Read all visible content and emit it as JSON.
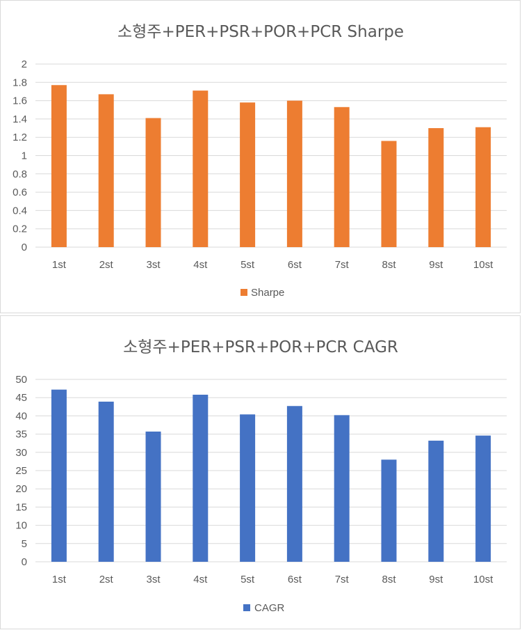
{
  "chart_data": [
    {
      "type": "bar",
      "title": "소형주+PER+PSR+POR+PCR Sharpe",
      "categories": [
        "1st",
        "2st",
        "3st",
        "4st",
        "5st",
        "6st",
        "7st",
        "8st",
        "9st",
        "10st"
      ],
      "series": [
        {
          "name": "Sharpe",
          "values": [
            1.77,
            1.67,
            1.41,
            1.71,
            1.58,
            1.6,
            1.53,
            1.16,
            1.3,
            1.31
          ]
        }
      ],
      "ylim": [
        0,
        2
      ],
      "yticks": [
        "0",
        "0.2",
        "0.4",
        "0.6",
        "0.8",
        "1",
        "1.2",
        "1.4",
        "1.6",
        "1.8",
        "2"
      ],
      "grid": true,
      "legend": "bottom",
      "color": "#ed7d31"
    },
    {
      "type": "bar",
      "title": "소형주+PER+PSR+POR+PCR CAGR",
      "categories": [
        "1st",
        "2st",
        "3st",
        "4st",
        "5st",
        "6st",
        "7st",
        "8st",
        "9st",
        "10st"
      ],
      "series": [
        {
          "name": "CAGR",
          "values": [
            47.2,
            43.9,
            35.7,
            45.8,
            40.4,
            42.7,
            40.2,
            28.0,
            33.2,
            34.6
          ]
        }
      ],
      "ylim": [
        0,
        50
      ],
      "yticks": [
        "0",
        "5",
        "10",
        "15",
        "20",
        "25",
        "30",
        "35",
        "40",
        "45",
        "50"
      ],
      "grid": true,
      "legend": "bottom",
      "color": "#4472c4"
    }
  ]
}
